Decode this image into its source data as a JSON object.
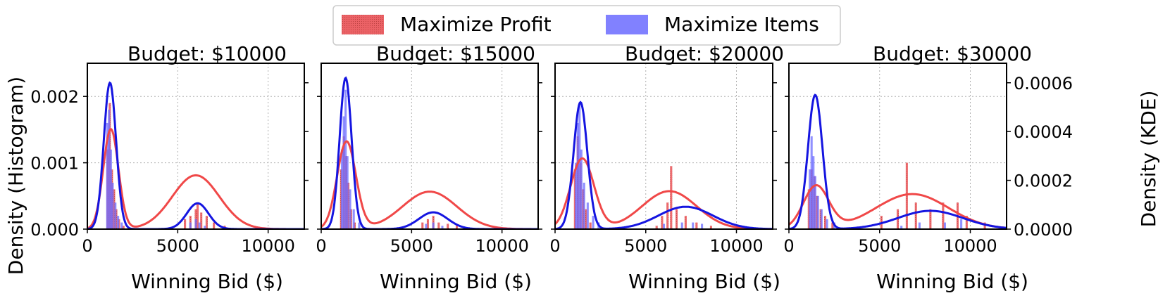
{
  "legend": {
    "items": [
      {
        "label": "Maximize Profit",
        "color": "#e8474b"
      },
      {
        "label": "Maximize Items",
        "color": "#6464ff"
      }
    ]
  },
  "axes_labels": {
    "xlabel": "Winning Bid ($)",
    "ylabel_left": "Density (Histogram)",
    "ylabel_right": "Density (KDE)"
  },
  "colors": {
    "profit_bar": "#e8474b",
    "profit_kde": "#f04848",
    "items_bar": "#6b6bff",
    "items_kde": "#1515e0"
  },
  "chart_data": [
    {
      "type": "histogram+kde",
      "title": "Budget: $10000",
      "xlim": [
        0,
        12000
      ],
      "xticks": [
        0,
        5000,
        10000
      ],
      "ylim_hist": [
        0,
        0.0025
      ],
      "yticks_hist": [
        "0.000",
        "0.001",
        "0.002"
      ],
      "ylim_kde": [
        0,
        0.00068
      ],
      "series": [
        {
          "name": "Maximize Profit",
          "hist": [
            [
              1120,
              0.0012
            ],
            [
              1240,
              0.0019
            ],
            [
              1360,
              0.0009
            ],
            [
              1480,
              0.0006
            ],
            [
              1600,
              0.0003
            ],
            [
              1750,
              0.00015
            ],
            [
              2000,
              5e-05
            ],
            [
              5400,
              0.00015
            ],
            [
              5700,
              0.0002
            ],
            [
              6000,
              0.0003
            ],
            [
              6100,
              0.0004
            ],
            [
              6300,
              0.00025
            ],
            [
              6600,
              0.0002
            ],
            [
              7000,
              0.0001
            ],
            [
              7600,
              5e-05
            ]
          ],
          "kde": [
            {
              "mu": 1300,
              "sigma": 420,
              "weight": 0.65
            },
            {
              "mu": 6000,
              "sigma": 1300,
              "weight": 0.35
            }
          ],
          "kde_peak": 0.00041
        },
        {
          "name": "Maximize Items",
          "hist": [
            [
              1100,
              0.0016
            ],
            [
              1200,
              0.0018
            ],
            [
              1300,
              0.0012
            ],
            [
              1400,
              0.0007
            ],
            [
              1550,
              0.0004
            ],
            [
              1700,
              0.0002
            ],
            [
              1900,
              0.0001
            ],
            [
              5700,
              0.0001
            ],
            [
              6000,
              0.00015
            ],
            [
              6200,
              0.0001
            ],
            [
              6500,
              5e-05
            ]
          ],
          "kde": [
            {
              "mu": 1250,
              "sigma": 340,
              "weight": 0.85
            },
            {
              "mu": 6100,
              "sigma": 600,
              "weight": 0.15
            }
          ],
          "kde_peak": 0.0006
        }
      ]
    },
    {
      "type": "histogram+kde",
      "title": "Budget: $15000",
      "xlim": [
        0,
        12000
      ],
      "xticks": [
        0,
        5000,
        10000
      ],
      "ylim_hist": [
        0,
        0.0025
      ],
      "ylim_kde": [
        0,
        0.00068
      ],
      "series": [
        {
          "name": "Maximize Profit",
          "hist": [
            [
              1100,
              0.0009
            ],
            [
              1250,
              0.0014
            ],
            [
              1380,
              0.0011
            ],
            [
              1500,
              0.0007
            ],
            [
              1650,
              0.0003
            ],
            [
              1850,
              0.0001
            ],
            [
              5600,
              0.0001
            ],
            [
              5900,
              0.00015
            ],
            [
              6200,
              0.0002
            ],
            [
              6500,
              0.0001
            ],
            [
              7000,
              8e-05
            ],
            [
              7500,
              5e-05
            ]
          ],
          "kde": [
            {
              "mu": 1400,
              "sigma": 520,
              "weight": 0.7
            },
            {
              "mu": 6000,
              "sigma": 1500,
              "weight": 0.3
            }
          ],
          "kde_peak": 0.00036
        },
        {
          "name": "Maximize Items",
          "hist": [
            [
              1150,
              0.0012
            ],
            [
              1250,
              0.0017
            ],
            [
              1350,
              0.0021
            ],
            [
              1450,
              0.0011
            ],
            [
              1600,
              0.0006
            ],
            [
              1800,
              0.0003
            ],
            [
              2100,
              0.0001
            ],
            [
              5800,
              8e-05
            ],
            [
              6200,
              0.0001
            ],
            [
              6700,
              5e-05
            ]
          ],
          "kde": [
            {
              "mu": 1350,
              "sigma": 330,
              "weight": 0.9
            },
            {
              "mu": 6200,
              "sigma": 800,
              "weight": 0.1
            }
          ],
          "kde_peak": 0.00062
        }
      ]
    },
    {
      "type": "histogram+kde",
      "title": "Budget: $20000",
      "xlim": [
        0,
        12000
      ],
      "xticks": [
        0,
        5000,
        10000
      ],
      "ylim_hist": [
        0,
        0.0025
      ],
      "ylim_kde": [
        0,
        0.00068
      ],
      "series": [
        {
          "name": "Maximize Profit",
          "hist": [
            [
              1100,
              0.0009
            ],
            [
              1250,
              0.0014
            ],
            [
              1400,
              0.001
            ],
            [
              1550,
              0.0006
            ],
            [
              1700,
              0.0003
            ],
            [
              1950,
              0.0001
            ],
            [
              5600,
              5e-05
            ],
            [
              5900,
              0.0002
            ],
            [
              6200,
              0.0004
            ],
            [
              6400,
              0.00095
            ],
            [
              6700,
              0.0003
            ],
            [
              7200,
              0.0002
            ],
            [
              7800,
              0.0001
            ],
            [
              8600,
              5e-05
            ]
          ],
          "kde": [
            {
              "mu": 1500,
              "sigma": 650,
              "weight": 0.65
            },
            {
              "mu": 6300,
              "sigma": 1500,
              "weight": 0.35
            }
          ],
          "kde_peak": 0.00029
        },
        {
          "name": "Maximize Items",
          "hist": [
            [
              1150,
              0.001
            ],
            [
              1250,
              0.0016
            ],
            [
              1350,
              0.0019
            ],
            [
              1450,
              0.0012
            ],
            [
              1600,
              0.0007
            ],
            [
              1800,
              0.0004
            ],
            [
              2100,
              0.0002
            ],
            [
              2400,
              0.0001
            ],
            [
              6000,
              8e-05
            ],
            [
              7000,
              0.0001
            ],
            [
              7600,
              0.0001
            ],
            [
              8100,
              8e-05
            ]
          ],
          "kde": [
            {
              "mu": 1400,
              "sigma": 380,
              "weight": 0.85
            },
            {
              "mu": 7200,
              "sigma": 1500,
              "weight": 0.15
            }
          ],
          "kde_peak": 0.00052
        }
      ]
    },
    {
      "type": "histogram+kde",
      "title": "Budget: $30000",
      "xlim": [
        0,
        12000
      ],
      "xticks": [
        0,
        5000,
        10000
      ],
      "ylim_hist": [
        0,
        0.0025
      ],
      "ylim_kde": [
        0,
        0.00068
      ],
      "yticks_kde": [
        "0.0000",
        "0.0002",
        "0.0004",
        "0.0006"
      ],
      "series": [
        {
          "name": "Maximize Profit",
          "hist": [
            [
              1100,
              0.0006
            ],
            [
              1250,
              0.0009
            ],
            [
              1400,
              0.0008
            ],
            [
              1550,
              0.0005
            ],
            [
              1750,
              0.0003
            ],
            [
              2000,
              0.0002
            ],
            [
              2400,
              0.0001
            ],
            [
              5100,
              0.0002
            ],
            [
              6000,
              0.0003
            ],
            [
              6500,
              0.001
            ],
            [
              7000,
              0.0004
            ],
            [
              7800,
              0.0003
            ],
            [
              8500,
              0.0004
            ],
            [
              9300,
              0.0004
            ],
            [
              9800,
              0.0002
            ],
            [
              10800,
              0.0001
            ]
          ],
          "kde": [
            {
              "mu": 1500,
              "sigma": 700,
              "weight": 0.55
            },
            {
              "mu": 6800,
              "sigma": 2000,
              "weight": 0.45
            }
          ],
          "kde_peak": 0.00018
        },
        {
          "name": "Maximize Items",
          "hist": [
            [
              1150,
              0.0009
            ],
            [
              1250,
              0.0014
            ],
            [
              1350,
              0.0011
            ],
            [
              1450,
              0.0008
            ],
            [
              1600,
              0.0005
            ],
            [
              1800,
              0.0003
            ],
            [
              2100,
              0.00015
            ],
            [
              2500,
              0.0001
            ],
            [
              6200,
              5e-05
            ],
            [
              7200,
              0.0001
            ],
            [
              8600,
              0.0001
            ],
            [
              9500,
              0.00015
            ]
          ],
          "kde": [
            {
              "mu": 1450,
              "sigma": 400,
              "weight": 0.88
            },
            {
              "mu": 7800,
              "sigma": 1800,
              "weight": 0.12
            }
          ],
          "kde_peak": 0.00055
        }
      ]
    }
  ]
}
